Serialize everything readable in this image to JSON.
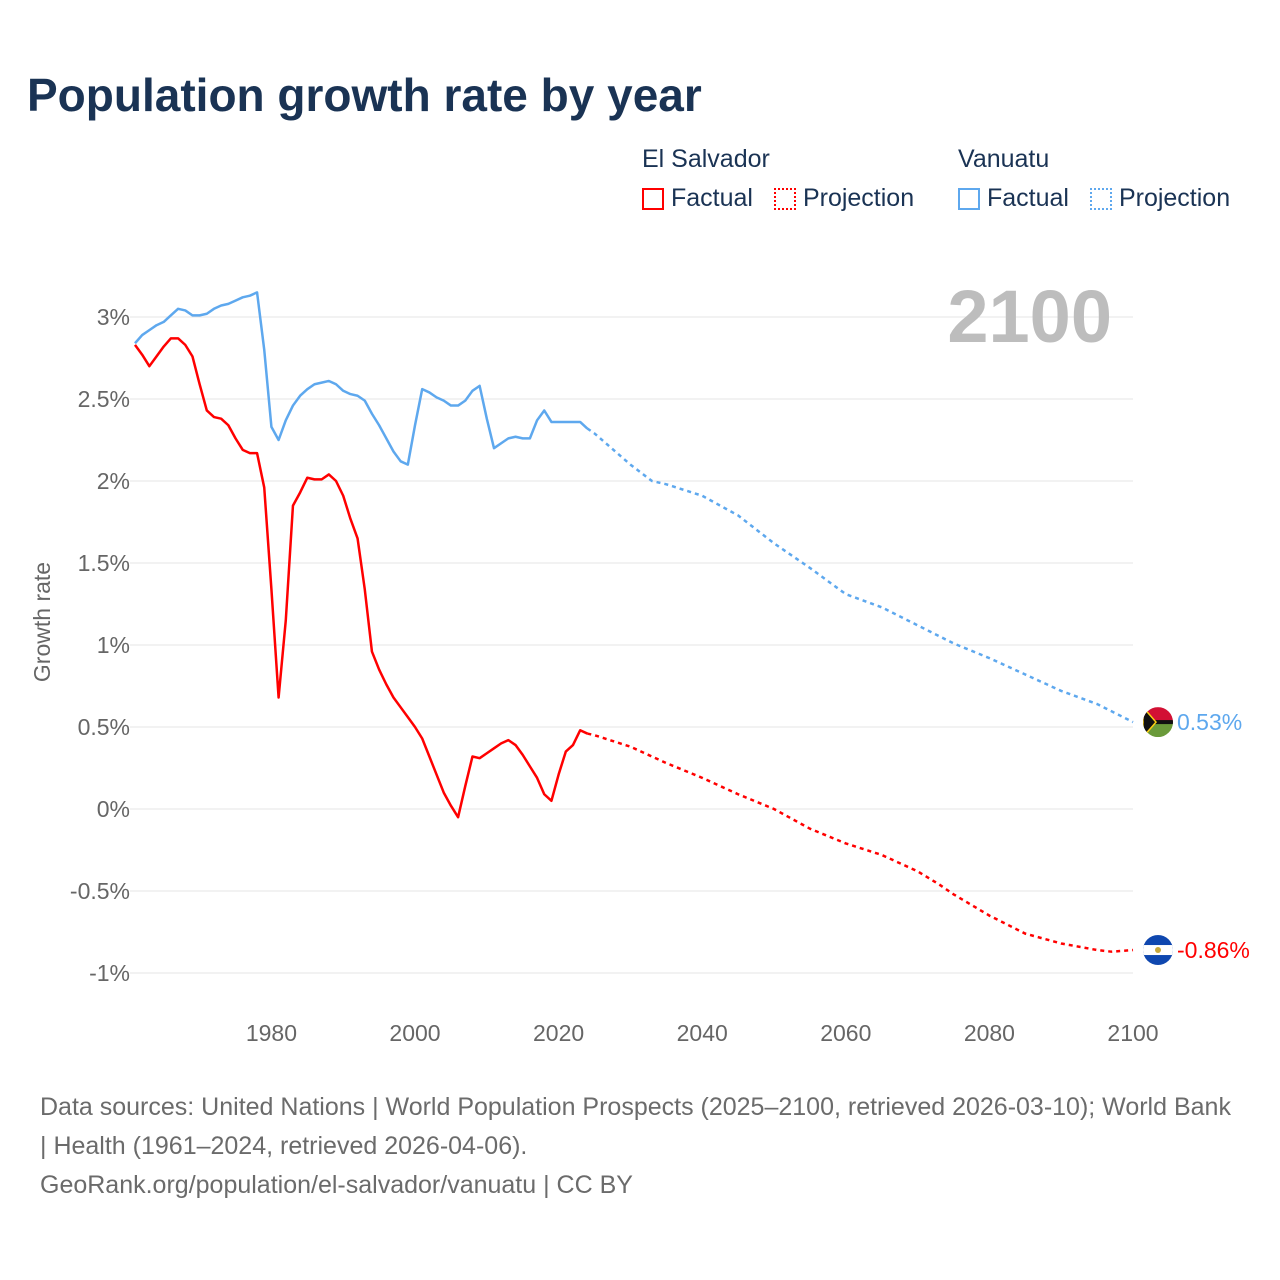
{
  "title": "Population growth rate by year",
  "legend": [
    {
      "country": "El Salvador",
      "factual": "Factual",
      "projection": "Projection",
      "color": "#ff0000"
    },
    {
      "country": "Vanuatu",
      "factual": "Factual",
      "projection": "Projection",
      "color": "#5ea8ee"
    }
  ],
  "year_label": "2100",
  "footer": {
    "sources": "Data sources: United Nations | World Population Prospects (2025–2100, retrieved 2026-03-10); World Bank | Health (1961–2024, retrieved 2026-04-06).",
    "credit": "GeoRank.org/population/el-salvador/vanuatu | CC BY"
  },
  "chart_data": {
    "type": "line",
    "title": "Population growth rate by year",
    "xlabel": "",
    "ylabel": "Growth rate",
    "xlim": [
      1961,
      2100
    ],
    "ylim": [
      -1.2,
      3.3
    ],
    "grid": true,
    "legend_position": "top-right",
    "x_ticks": [
      1980,
      2000,
      2020,
      2040,
      2060,
      2080,
      2100
    ],
    "x_tick_labels": [
      "1980",
      "2000",
      "2020",
      "2040",
      "2060",
      "2080",
      "2100"
    ],
    "y_ticks": [
      3,
      2.5,
      2,
      1.5,
      1,
      0.5,
      0,
      -0.5,
      -1
    ],
    "y_tick_labels": [
      "3%",
      "2.5%",
      "2%",
      "1.5%",
      "1%",
      "0.5%",
      "0%",
      "-0.5%",
      "-1%"
    ],
    "series": [
      {
        "name": "Vanuatu",
        "color": "#5ea8ee",
        "end_label": "0.53%",
        "factual": {
          "start_year": 1961,
          "values": [
            2.84,
            2.89,
            2.92,
            2.95,
            2.97,
            3.01,
            3.05,
            3.04,
            3.01,
            3.01,
            3.02,
            3.05,
            3.07,
            3.08,
            3.1,
            3.12,
            3.13,
            3.15,
            2.8,
            2.33,
            2.25,
            2.37,
            2.46,
            2.52,
            2.56,
            2.59,
            2.6,
            2.61,
            2.59,
            2.55,
            2.53,
            2.52,
            2.49,
            2.41,
            2.34,
            2.26,
            2.18,
            2.12,
            2.1,
            2.34,
            2.56,
            2.54,
            2.51,
            2.49,
            2.46,
            2.46,
            2.49,
            2.55,
            2.58,
            2.38,
            2.2,
            2.23,
            2.26,
            2.27,
            2.26,
            2.26,
            2.37,
            2.43,
            2.36,
            2.36,
            2.36,
            2.36,
            2.36,
            2.32
          ]
        },
        "projection": {
          "years": [
            2024,
            2025,
            2030,
            2033,
            2035,
            2040,
            2045,
            2050,
            2055,
            2060,
            2065,
            2070,
            2075,
            2080,
            2085,
            2090,
            2095,
            2100
          ],
          "values": [
            2.32,
            2.29,
            2.1,
            2.0,
            1.98,
            1.91,
            1.79,
            1.62,
            1.47,
            1.31,
            1.23,
            1.12,
            1.01,
            0.92,
            0.82,
            0.72,
            0.64,
            0.53
          ]
        }
      },
      {
        "name": "El Salvador",
        "color": "#ff0000",
        "end_label": "-0.86%",
        "factual": {
          "start_year": 1961,
          "values": [
            2.83,
            2.77,
            2.7,
            2.76,
            2.82,
            2.87,
            2.87,
            2.83,
            2.76,
            2.59,
            2.43,
            2.39,
            2.38,
            2.34,
            2.26,
            2.19,
            2.17,
            2.17,
            1.96,
            1.34,
            0.68,
            1.15,
            1.85,
            1.93,
            2.02,
            2.01,
            2.01,
            2.04,
            2.0,
            1.91,
            1.77,
            1.65,
            1.34,
            0.96,
            0.85,
            0.76,
            0.68,
            0.62,
            0.56,
            0.5,
            0.43,
            0.32,
            0.21,
            0.1,
            0.02,
            -0.05,
            0.14,
            0.32,
            0.31,
            0.34,
            0.37,
            0.4,
            0.42,
            0.39,
            0.33,
            0.26,
            0.19,
            0.09,
            0.05,
            0.21,
            0.35,
            0.39,
            0.48,
            0.46
          ]
        },
        "projection": {
          "years": [
            2024,
            2025,
            2030,
            2035,
            2040,
            2045,
            2050,
            2055,
            2060,
            2065,
            2070,
            2073,
            2075,
            2080,
            2085,
            2090,
            2095,
            2097,
            2100
          ],
          "values": [
            0.46,
            0.45,
            0.38,
            0.28,
            0.19,
            0.09,
            0.0,
            -0.12,
            -0.21,
            -0.28,
            -0.38,
            -0.46,
            -0.52,
            -0.65,
            -0.76,
            -0.82,
            -0.86,
            -0.87,
            -0.86
          ]
        }
      }
    ]
  }
}
